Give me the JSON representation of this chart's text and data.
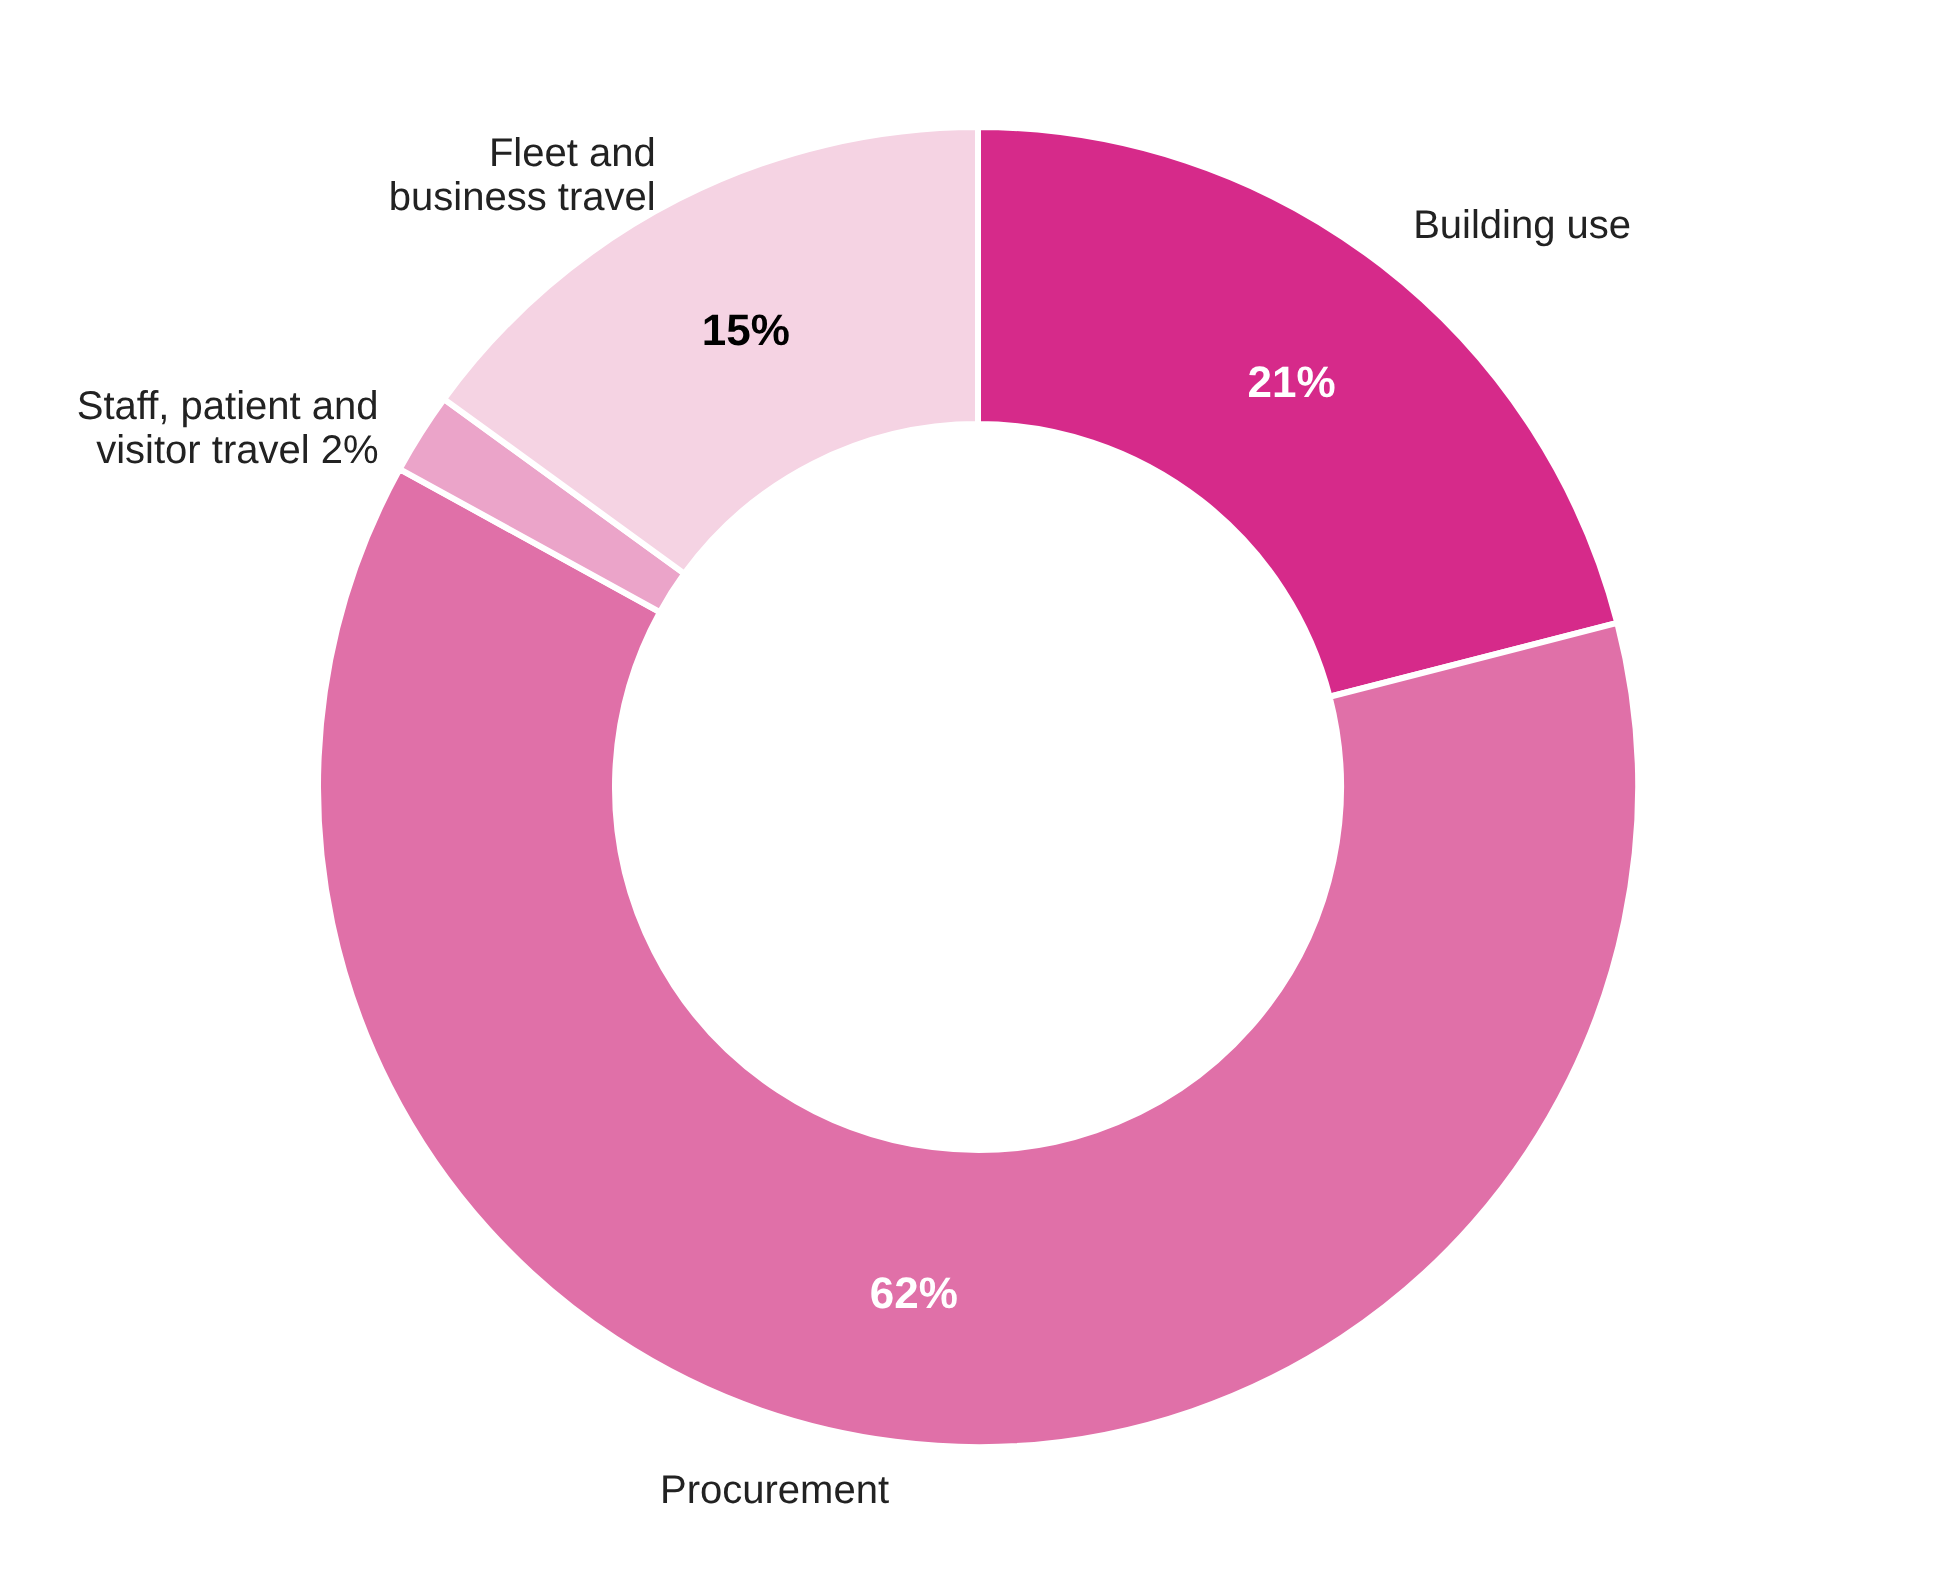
{
  "chart_data": {
    "type": "donut",
    "categories": [
      "Building use",
      "Procurement",
      "Staff, patient and\nvisitor travel",
      "Fleet and\nbusiness travel"
    ],
    "values": [
      21,
      62,
      2,
      15
    ],
    "colors": [
      "#d62a8a",
      "#e070a8",
      "#eba4c9",
      "#f5d3e3"
    ],
    "value_labels": [
      "21%",
      "62%",
      "2%",
      "15%"
    ]
  }
}
